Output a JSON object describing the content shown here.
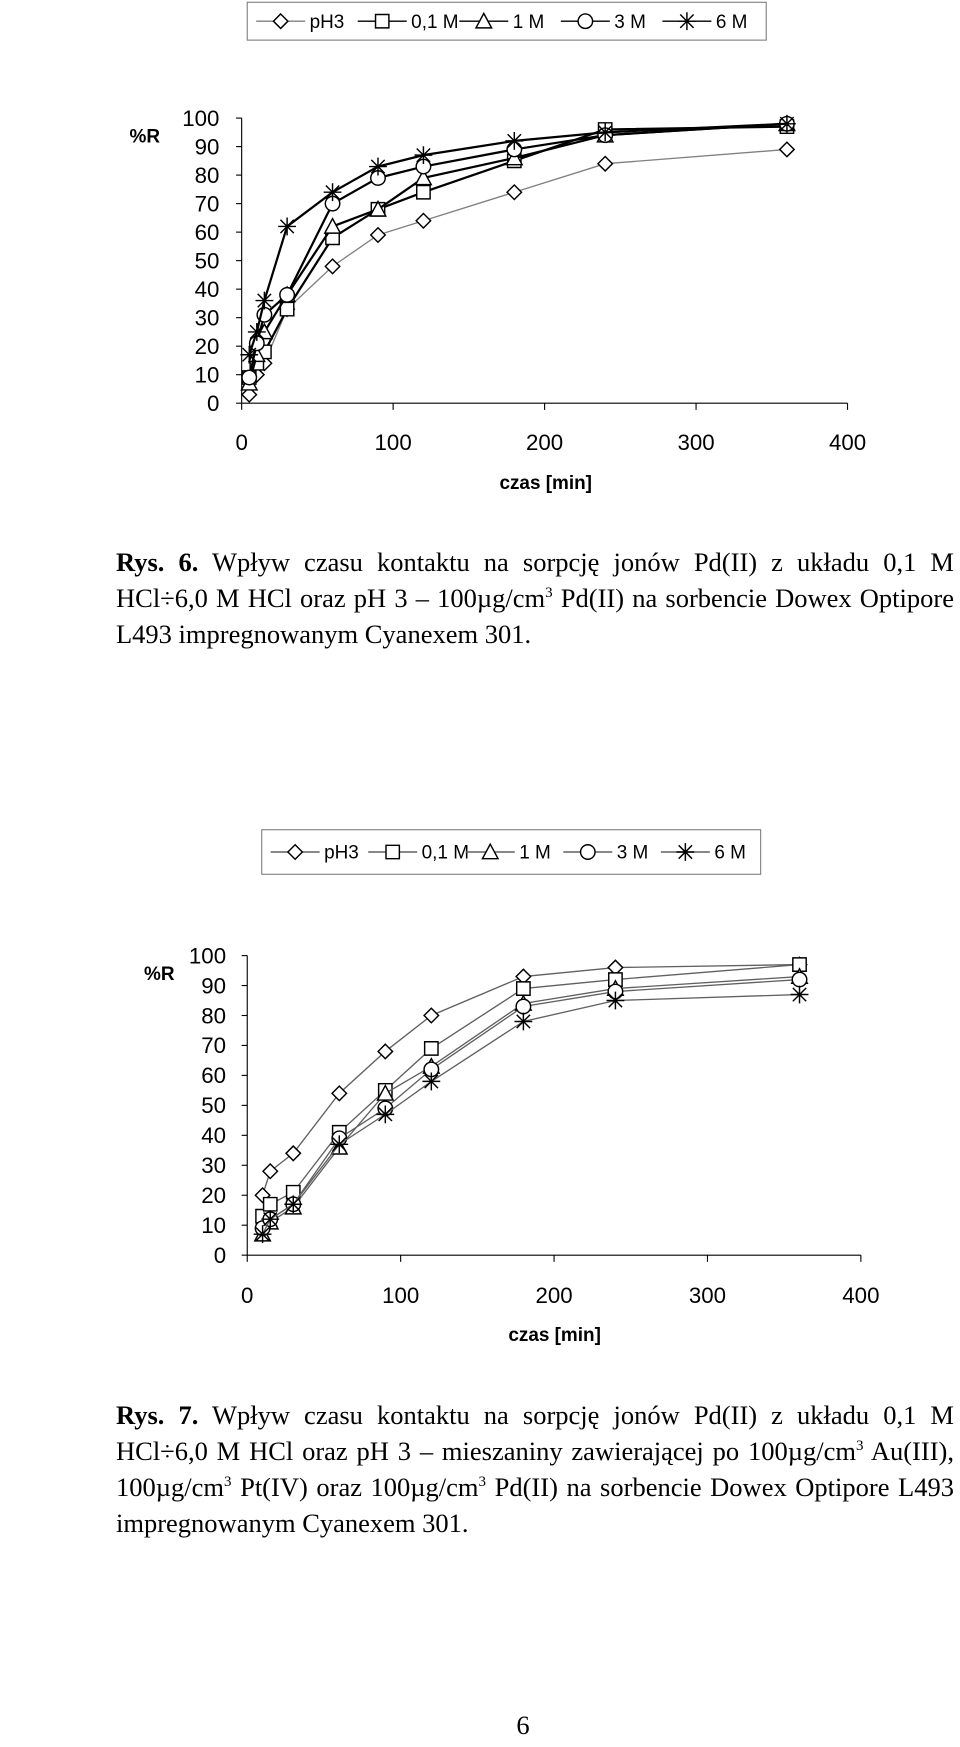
{
  "chart_data": [
    {
      "type": "line",
      "x_label": "czas [min]",
      "y_label": "%R",
      "x": [
        5,
        10,
        15,
        30,
        60,
        90,
        120,
        180,
        240,
        360
      ],
      "xlim": [
        0,
        400
      ],
      "xticks": [
        0,
        100,
        200,
        300,
        400
      ],
      "ylim": [
        0,
        100
      ],
      "yticks": [
        0,
        10,
        20,
        30,
        40,
        50,
        60,
        70,
        80,
        90,
        100
      ],
      "grid": false,
      "legend": "top",
      "series": [
        {
          "name": "pH3",
          "color": "#808080",
          "marker": "diamond",
          "values": [
            3,
            10,
            14,
            33,
            48,
            59,
            64,
            74,
            84,
            89
          ]
        },
        {
          "name": "0,1 M",
          "color": "#000000",
          "marker": "square",
          "values": [
            9,
            14,
            18,
            33,
            58,
            68,
            74,
            85,
            96,
            97
          ]
        },
        {
          "name": "1 M",
          "color": "#000000",
          "marker": "triangle",
          "values": [
            7,
            17,
            25,
            38,
            62,
            68,
            79,
            86,
            94,
            98
          ]
        },
        {
          "name": "3 M",
          "color": "#000000",
          "marker": "circle",
          "values": [
            9,
            21,
            31,
            38,
            70,
            79,
            83,
            89,
            94,
            98
          ]
        },
        {
          "name": "6 M",
          "color": "#000000",
          "marker": "star",
          "values": [
            17,
            25,
            36,
            62,
            74,
            83,
            87,
            92,
            95,
            98
          ]
        }
      ]
    },
    {
      "type": "line",
      "x_label": "czas [min]",
      "y_label": "%R",
      "x": [
        10,
        15,
        30,
        60,
        90,
        120,
        180,
        240,
        360
      ],
      "xlim": [
        0,
        400
      ],
      "xticks": [
        0,
        100,
        200,
        300,
        400
      ],
      "ylim": [
        0,
        100
      ],
      "yticks": [
        0,
        10,
        20,
        30,
        40,
        50,
        60,
        70,
        80,
        90,
        100
      ],
      "grid": false,
      "legend": "top",
      "series": [
        {
          "name": "pH3",
          "color": "#606060",
          "marker": "diamond",
          "values": [
            20,
            28,
            34,
            54,
            68,
            80,
            93,
            96,
            97
          ]
        },
        {
          "name": "0,1 M",
          "color": "#606060",
          "marker": "square",
          "values": [
            13,
            17,
            21,
            41,
            55,
            69,
            89,
            92,
            97
          ]
        },
        {
          "name": "1 M",
          "color": "#606060",
          "marker": "triangle",
          "values": [
            7,
            11,
            16,
            36,
            54,
            63,
            84,
            89,
            93
          ]
        },
        {
          "name": "3 M",
          "color": "#606060",
          "marker": "circle",
          "values": [
            9,
            12,
            17,
            39,
            49,
            62,
            83,
            88,
            92
          ]
        },
        {
          "name": "6 M",
          "color": "#606060",
          "marker": "star",
          "values": [
            7,
            12,
            17,
            37,
            47,
            58,
            78,
            85,
            87
          ]
        }
      ]
    }
  ],
  "captions": [
    {
      "label": "Rys. 6.",
      "runs": [
        "Wpływ czasu kontaktu na sorpcję jonów Pd(II) z układu 0,1 M HCl÷6,0 M HCl oraz pH 3 – 100µg/cm",
        "3",
        " Pd(II) na sorbencie Dowex Optipore L493 impregnowanym Cyanexem 301."
      ]
    },
    {
      "label": "Rys. 7.",
      "runs": [
        "Wpływ czasu kontaktu na sorpcję jonów Pd(II) z układu 0,1 M HCl÷6,0 M HCl oraz pH 3 – mieszaniny zawierającej po 100µg/cm",
        "3",
        " Au(III), 100µg/cm",
        "3",
        " Pt(IV) oraz 100µg/cm",
        "3",
        " Pd(II) na sorbencie Dowex Optipore L493 impregnowanym Cyanexem 301."
      ]
    }
  ],
  "page_number": "6"
}
